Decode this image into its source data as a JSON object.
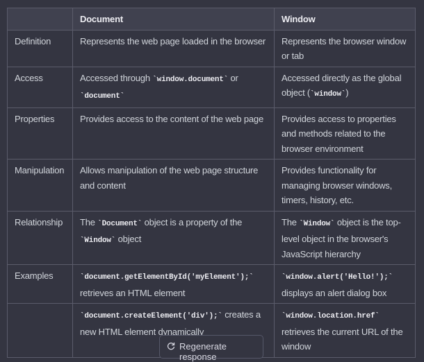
{
  "table": {
    "columns": [
      "Document",
      "Window"
    ],
    "rows": [
      {
        "label": "Definition",
        "cells": [
          [
            "Represents the web page loaded in the browser"
          ],
          [
            "Represents the browser window or tab"
          ]
        ]
      },
      {
        "label": "Access",
        "cells": [
          [
            "Accessed through ",
            {
              "code": "`window.document`"
            },
            " or ",
            {
              "code": "`document`"
            }
          ],
          [
            "Accessed directly as the global object (",
            {
              "code": "`window`"
            },
            ")"
          ]
        ]
      },
      {
        "label": "Properties",
        "cells": [
          [
            "Provides access to the content of the web page"
          ],
          [
            "Provides access to properties and methods related to the browser environment"
          ]
        ]
      },
      {
        "label": "Manipulation",
        "cells": [
          [
            "Allows manipulation of the web page structure and content"
          ],
          [
            "Provides functionality for managing browser windows, timers, history, etc."
          ]
        ]
      },
      {
        "label": "Relationship",
        "cells": [
          [
            "The ",
            {
              "code": "`Document`"
            },
            " object is a property of the ",
            {
              "code": "`Window`"
            },
            " object"
          ],
          [
            "The ",
            {
              "code": "`Window`"
            },
            " object is the top-level object in the browser's JavaScript hierarchy"
          ]
        ]
      },
      {
        "label": "Examples",
        "cells": [
          [
            {
              "code": "`document.getElementById('myElement');`"
            },
            " retrieves an HTML element"
          ],
          [
            {
              "code": "`window.alert('Hello!');`"
            },
            " displays an alert dialog box"
          ]
        ]
      },
      {
        "cells": [
          [
            {
              "code": "`document.createElement('div');`"
            },
            " creates a new HTML element dynamically"
          ],
          [
            {
              "code": "`window.location.href`"
            },
            " retrieves the current URL of the window"
          ]
        ]
      }
    ]
  },
  "footer": {
    "button": "Regenerate response"
  }
}
